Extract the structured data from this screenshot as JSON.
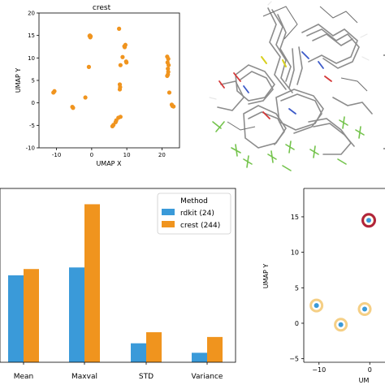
{
  "colors": {
    "rdkit": "#3a9ad9",
    "crest": "#f0941e",
    "frame": "#000000"
  },
  "chart_data": [
    {
      "type": "scatter",
      "title": "crest",
      "xlabel": "UMAP X",
      "ylabel": "UMAP Y",
      "xlim": [
        -15,
        25
      ],
      "ylim": [
        -10,
        20
      ],
      "xticks": [
        -10,
        0,
        10,
        20
      ],
      "yticks": [
        -10,
        -5,
        0,
        5,
        10,
        15,
        20
      ],
      "series": [
        {
          "color": "#f0941e",
          "points": [
            [
              -0.5,
              15
            ],
            [
              -0.3,
              14.8
            ],
            [
              -0.6,
              14.9
            ],
            [
              -0.4,
              14.6
            ],
            [
              7.8,
              16.5
            ],
            [
              9.3,
              12.6
            ],
            [
              9.6,
              12.9
            ],
            [
              9.4,
              12.4
            ],
            [
              8.8,
              10.2
            ],
            [
              9.8,
              9.2
            ],
            [
              9.9,
              9.0
            ],
            [
              8.2,
              8.4
            ],
            [
              8.0,
              4.1
            ],
            [
              8.1,
              3.5
            ],
            [
              8.0,
              3.0
            ],
            [
              -0.8,
              8.0
            ],
            [
              21.5,
              10.3
            ],
            [
              21.8,
              9.8
            ],
            [
              21.6,
              9.0
            ],
            [
              21.9,
              8.4
            ],
            [
              21.7,
              7.6
            ],
            [
              21.8,
              6.9
            ],
            [
              21.5,
              6.0
            ],
            [
              21.7,
              6.3
            ],
            [
              22.1,
              2.3
            ],
            [
              -10.6,
              2.6
            ],
            [
              -10.9,
              2.3
            ],
            [
              -1.8,
              1.2
            ],
            [
              -5.5,
              -0.9
            ],
            [
              -5.3,
              -1.1
            ],
            [
              22.8,
              -0.4
            ],
            [
              23.0,
              -0.7
            ],
            [
              23.3,
              -0.8
            ],
            [
              8.2,
              -3.1
            ],
            [
              7.6,
              -3.3
            ],
            [
              7.0,
              -3.9
            ],
            [
              6.8,
              -4.3
            ],
            [
              6.2,
              -4.9
            ],
            [
              5.9,
              -5.2
            ]
          ]
        }
      ]
    },
    {
      "type": "bar",
      "categories": [
        "Mean",
        "Maxval",
        "STD",
        "Variance"
      ],
      "legend_title": "Method",
      "legend_position": "top-right",
      "ylim": [
        0,
        1.1
      ],
      "series": [
        {
          "name": "rdkit (24)",
          "color": "#3a9ad9",
          "values": [
            0.55,
            0.6,
            0.12,
            0.06
          ]
        },
        {
          "name": "crest (244)",
          "color": "#f0941e",
          "values": [
            0.59,
            1.0,
            0.19,
            0.16
          ]
        }
      ]
    },
    {
      "type": "scatter",
      "xlabel": "UM",
      "ylabel": "UMAP Y",
      "xlim": [
        -13,
        3
      ],
      "ylim": [
        -5.5,
        19
      ],
      "xticks": [
        -10,
        0
      ],
      "yticks": [
        -5,
        0,
        5,
        10,
        15
      ],
      "series": [
        {
          "color": "#3a9ad9",
          "points": [
            [
              -0.2,
              14.5
            ],
            [
              -10.5,
              2.5
            ],
            [
              -1.0,
              2.0
            ],
            [
              -5.7,
              -0.2
            ]
          ],
          "halo_color": "#f5cf85",
          "highlight": {
            "point": [
              -0.2,
              14.5
            ],
            "ring_color": "#b0243c"
          }
        }
      ]
    }
  ]
}
